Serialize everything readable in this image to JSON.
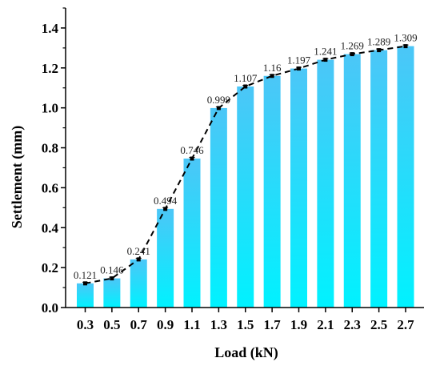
{
  "chart_data": {
    "type": "bar",
    "xlabel": "Load (kN)",
    "ylabel": "Settlement (mm)",
    "categories": [
      "0.3",
      "0.5",
      "0.7",
      "0.9",
      "1.1",
      "1.3",
      "1.5",
      "1.7",
      "1.9",
      "2.1",
      "2.3",
      "2.5",
      "2.7"
    ],
    "values": [
      0.121,
      0.146,
      0.241,
      0.494,
      0.746,
      0.999,
      1.107,
      1.16,
      1.197,
      1.241,
      1.269,
      1.289,
      1.309
    ],
    "data_labels": [
      "0.121",
      "0.146",
      "0.241",
      "0.494",
      "0.746",
      "0.999",
      "1.107",
      "1.16",
      "1.197",
      "1.241",
      "1.269",
      "1.289",
      "1.309"
    ],
    "ylim": [
      0,
      1.5
    ],
    "yticks": [
      "0.0",
      "0.2",
      "0.4",
      "0.6",
      "0.8",
      "1.0",
      "1.2",
      "1.4"
    ],
    "overlay_line": "dashed",
    "grid": false,
    "colors": {
      "bar_top": "#4cc6f7",
      "bar_bottom": "#00f2ff",
      "line": "#000000"
    }
  }
}
